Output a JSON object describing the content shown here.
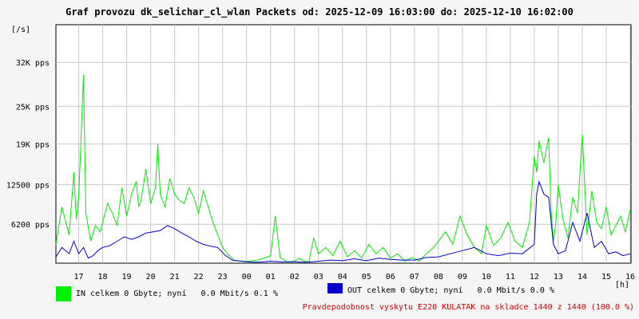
{
  "title": "Graf provozu dk_selichar_cl_wlan Packets od: 2025-12-09 16:03:00 do: 2025-12-10 16:02:00",
  "y_unit_label": "[/s]",
  "x_unit_label": "[h]",
  "colors": {
    "in": "#00ee00",
    "out": "#0000cc",
    "grid": "#c8c8c8",
    "note": "#d40000"
  },
  "legend": {
    "in_text": "IN celkem 0 Gbyte; nyní   0.0 Mbit/s 0.1 %",
    "out_text": "OUT celkem 0 Gbyte; nyní   0.0 Mbit/s 0.0 %"
  },
  "note": "Pravdepodobnost vyskytu E220 KULATAK na skladce 1440 z 1440 (100.0 %)",
  "chart_data": {
    "type": "line",
    "x_start_hour": 16.05,
    "x_end_hour": 40.033,
    "ylim": [
      0,
      38000
    ],
    "yticks": [
      {
        "value": 6200,
        "label": "6200 pps"
      },
      {
        "value": 12500,
        "label": "12500 pps"
      },
      {
        "value": 19000,
        "label": "19K pps"
      },
      {
        "value": 25000,
        "label": "25K pps"
      },
      {
        "value": 32000,
        "label": "32K pps"
      }
    ],
    "xticks": [
      "17",
      "18",
      "19",
      "20",
      "21",
      "22",
      "23",
      "00",
      "01",
      "02",
      "03",
      "04",
      "05",
      "06",
      "07",
      "08",
      "09",
      "10",
      "11",
      "12",
      "13",
      "14",
      "15",
      "16"
    ],
    "grid": true,
    "series": [
      {
        "name": "IN",
        "x": [
          16.05,
          16.3,
          16.6,
          16.8,
          16.9,
          17.0,
          17.1,
          17.2,
          17.3,
          17.5,
          17.7,
          17.9,
          18.0,
          18.2,
          18.4,
          18.6,
          18.8,
          19.0,
          19.2,
          19.4,
          19.5,
          19.6,
          19.8,
          20.0,
          20.2,
          20.3,
          20.4,
          20.6,
          20.8,
          21.0,
          21.2,
          21.4,
          21.6,
          21.8,
          22.0,
          22.2,
          22.4,
          22.6,
          22.8,
          23.0,
          23.2,
          23.5,
          24.0,
          24.5,
          25.0,
          25.2,
          25.4,
          25.7,
          26.0,
          26.2,
          26.4,
          26.6,
          26.8,
          27.0,
          27.3,
          27.6,
          27.9,
          28.2,
          28.5,
          28.8,
          29.1,
          29.4,
          29.7,
          30.0,
          30.3,
          30.6,
          30.9,
          31.2,
          31.5,
          31.8,
          32.0,
          32.3,
          32.6,
          32.9,
          33.2,
          33.5,
          33.8,
          34.0,
          34.3,
          34.6,
          34.9,
          35.2,
          35.5,
          35.8,
          36.0,
          36.1,
          36.2,
          36.4,
          36.6,
          36.7,
          36.8,
          36.9,
          37.0,
          37.2,
          37.4,
          37.6,
          37.8,
          38.0,
          38.2,
          38.4,
          38.6,
          38.8,
          39.0,
          39.2,
          39.4,
          39.6,
          39.8,
          40.0
        ],
        "y": [
          3000,
          9000,
          4500,
          14500,
          7000,
          10500,
          20000,
          30000,
          8000,
          3500,
          6000,
          5000,
          6500,
          9500,
          8000,
          6000,
          12000,
          7500,
          11000,
          13000,
          9000,
          10000,
          15000,
          9500,
          12000,
          19000,
          11000,
          9000,
          13500,
          11000,
          10000,
          9500,
          12000,
          10500,
          8000,
          11500,
          9000,
          6500,
          4500,
          2500,
          1500,
          400,
          300,
          500,
          1200,
          7500,
          900,
          200,
          300,
          800,
          300,
          200,
          4000,
          1500,
          2500,
          1200,
          3500,
          1000,
          2000,
          800,
          3000,
          1500,
          2500,
          800,
          1500,
          300,
          900,
          300,
          1500,
          2500,
          3500,
          5000,
          3000,
          7500,
          4500,
          2500,
          1500,
          6000,
          2800,
          4000,
          6500,
          3500,
          2500,
          6500,
          17000,
          14500,
          19500,
          16000,
          20000,
          8500,
          3500,
          6500,
          12500,
          7000,
          4000,
          10500,
          8000,
          20500,
          4500,
          11500,
          6500,
          5500,
          9000,
          4500,
          6000,
          7500,
          5000,
          8500
        ]
      },
      {
        "name": "OUT",
        "x": [
          16.05,
          16.3,
          16.6,
          16.8,
          17.0,
          17.2,
          17.4,
          17.6,
          17.8,
          18.0,
          18.3,
          18.6,
          18.9,
          19.2,
          19.5,
          19.8,
          20.1,
          20.4,
          20.7,
          21.0,
          21.3,
          21.6,
          21.9,
          22.2,
          22.5,
          22.8,
          23.1,
          23.4,
          24.0,
          24.5,
          25.0,
          25.5,
          26.0,
          26.5,
          27.0,
          27.5,
          28.0,
          28.5,
          29.0,
          29.5,
          30.0,
          30.5,
          31.0,
          31.5,
          32.0,
          32.5,
          33.0,
          33.5,
          34.0,
          34.5,
          35.0,
          35.5,
          36.0,
          36.1,
          36.2,
          36.4,
          36.6,
          36.8,
          37.0,
          37.3,
          37.6,
          37.9,
          38.2,
          38.5,
          38.8,
          39.1,
          39.4,
          39.7,
          40.0
        ],
        "y": [
          1000,
          2500,
          1500,
          3500,
          1500,
          2500,
          800,
          1200,
          2000,
          2500,
          2800,
          3500,
          4200,
          3800,
          4200,
          4800,
          5000,
          5200,
          6000,
          5500,
          4800,
          4200,
          3500,
          3000,
          2700,
          2500,
          1300,
          500,
          200,
          150,
          300,
          200,
          200,
          150,
          300,
          500,
          400,
          700,
          400,
          800,
          600,
          500,
          500,
          900,
          1000,
          1500,
          2000,
          2500,
          1500,
          1200,
          1600,
          1500,
          3000,
          11000,
          13000,
          11000,
          10500,
          3000,
          1500,
          2000,
          6500,
          3500,
          8000,
          2500,
          3500,
          1500,
          1800,
          1200,
          1500
        ]
      }
    ]
  }
}
